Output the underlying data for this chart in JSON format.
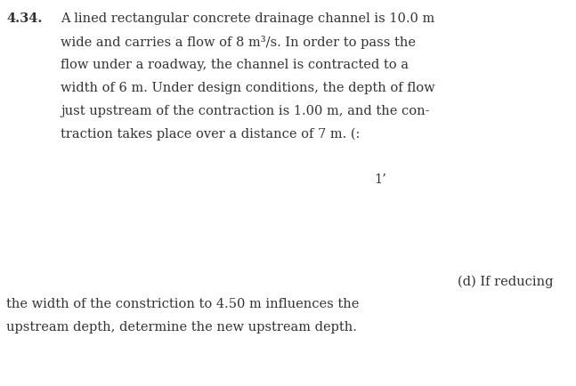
{
  "problem_number": "4.34.",
  "main_text_line1": "A lined rectangular concrete drainage channel is 10.0 m",
  "main_text_line2": "wide and carries a flow of 8 m³/s. In order to pass the",
  "main_text_line3": "flow under a roadway, the channel is contracted to a",
  "main_text_line4": "width of 6 m. Under design conditions, the depth of flow",
  "main_text_line5": "just upstream of the contraction is 1.00 m, and the con-",
  "main_text_line6": "traction takes place over a distance of 7 m. (:",
  "middle_label": "1’",
  "bottom_label_right": "(d) If reducing",
  "bottom_text_line1": "the width of the constriction to 4.50 m influences the",
  "bottom_text_line2": "upstream depth, determine the new upstream depth.",
  "bg_color": "#ffffff",
  "text_color": "#333333",
  "font_size_main": 10.5,
  "fig_width": 6.47,
  "fig_height": 4.34,
  "dpi": 100
}
